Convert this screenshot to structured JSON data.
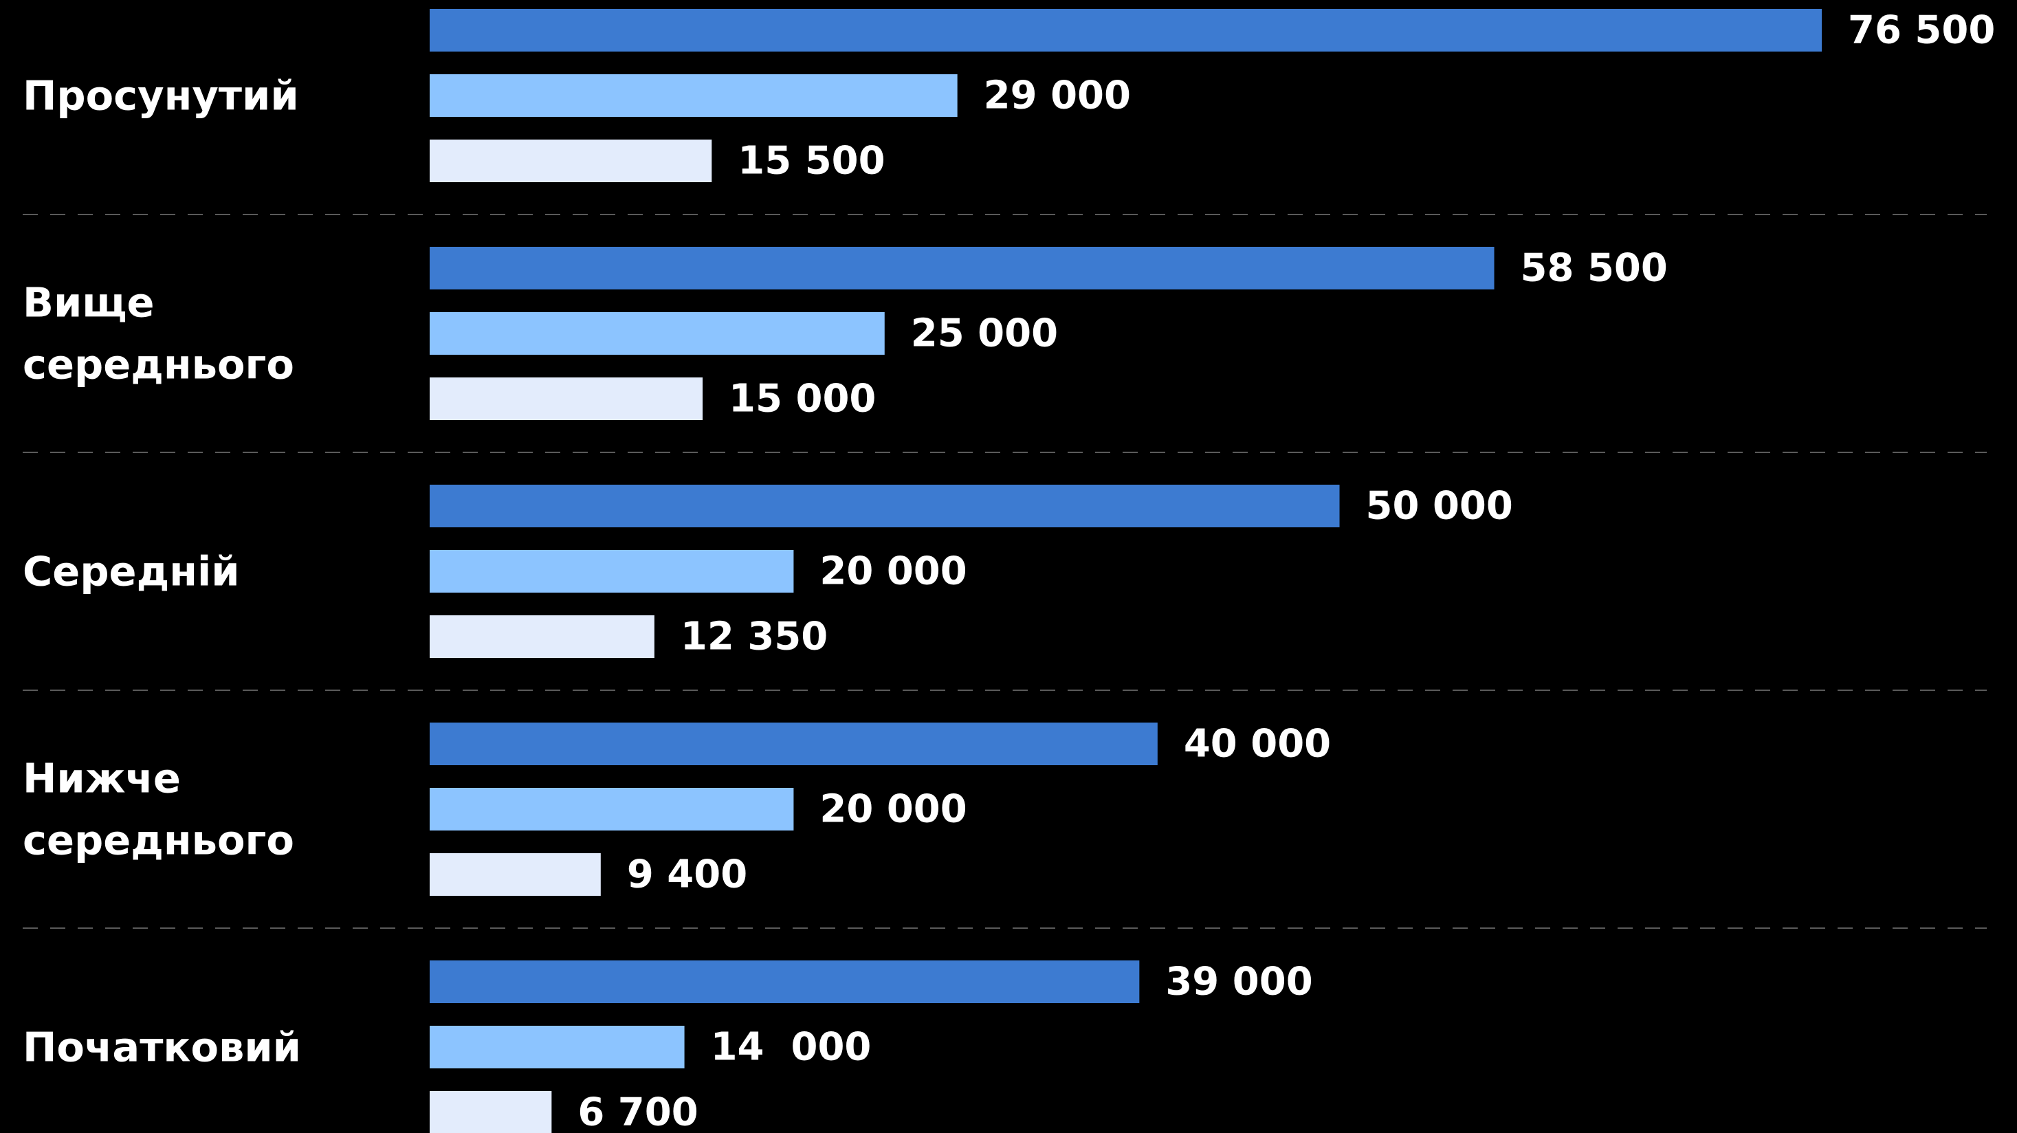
{
  "chart_data": {
    "type": "bar",
    "orientation": "horizontal",
    "categories": [
      {
        "label_lines": [
          "Просунутий"
        ]
      },
      {
        "label_lines": [
          "Вище",
          "середнього"
        ]
      },
      {
        "label_lines": [
          "Середній"
        ]
      },
      {
        "label_lines": [
          "Нижче",
          "середнього"
        ]
      },
      {
        "label_lines": [
          "Початковий"
        ]
      }
    ],
    "series": [
      {
        "color": "#3d7bd1",
        "values": [
          76500,
          58500,
          50000,
          40000,
          39000
        ],
        "value_labels": [
          "76 500",
          "58 500",
          "50 000",
          "40 000",
          "39 000"
        ]
      },
      {
        "color": "#8cc4ff",
        "values": [
          29000,
          25000,
          20000,
          20000,
          14000
        ],
        "value_labels": [
          "29 000",
          "25 000",
          "20 000",
          "20 000",
          "14  000"
        ]
      },
      {
        "color": "#e3ecfc",
        "values": [
          15500,
          15000,
          12350,
          9400,
          6700
        ],
        "value_labels": [
          "15 500",
          "15 000",
          "12 350",
          "9 400",
          "6 700"
        ]
      }
    ],
    "xlim": [
      0,
      76500
    ],
    "grid": false,
    "legend": "none",
    "separators": "dashed",
    "background": "#000000",
    "text_color": "#ffffff"
  }
}
